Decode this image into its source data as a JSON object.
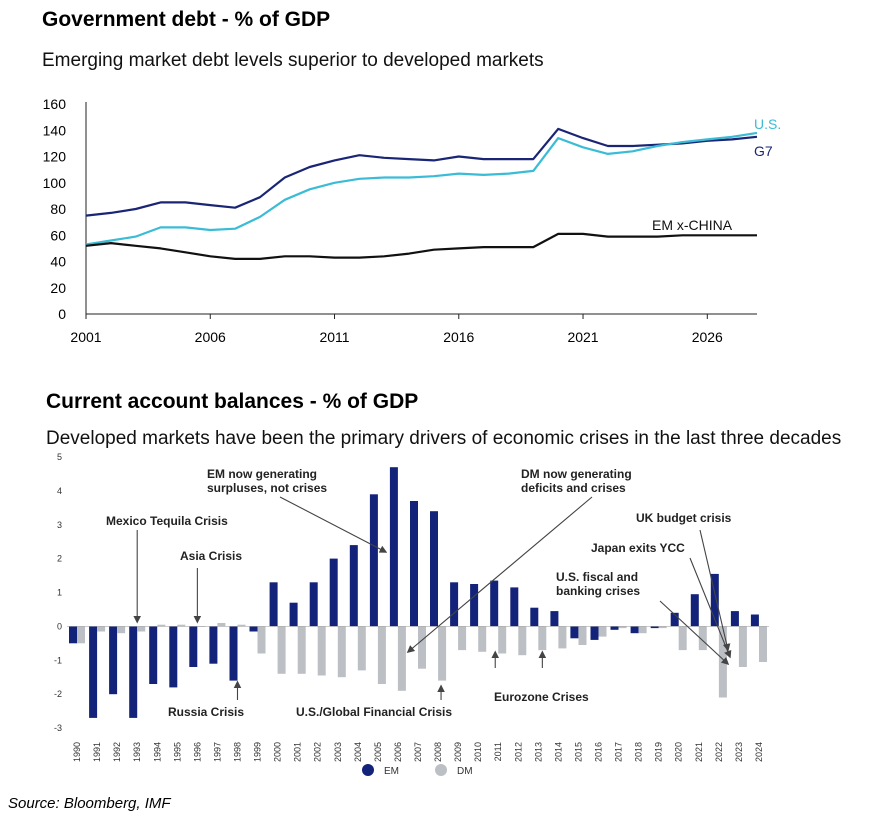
{
  "chart1": {
    "title": "Government debt - % of GDP",
    "subtitle": "Emerging market debt levels superior to developed markets"
  },
  "chart2": {
    "title": "Current account balances - % of GDP",
    "subtitle": "Developed markets have been the primary drivers of economic crises in the last three decades"
  },
  "source": "Source: Bloomberg, IMF",
  "colors": {
    "g7": "#1a2575",
    "us": "#3bbcd6",
    "em_line": "#111111",
    "em_bar": "#13237a",
    "dm_bar": "#bcbfc4"
  },
  "chart_data": [
    {
      "type": "line",
      "title": "Government debt - % of GDP",
      "ylim": [
        0,
        160
      ],
      "yticks": [
        0,
        20,
        40,
        60,
        80,
        100,
        120,
        140,
        160
      ],
      "xlim": [
        2001,
        2028
      ],
      "xticks": [
        2001,
        2006,
        2011,
        2016,
        2021,
        2026
      ],
      "grid": false,
      "x": [
        2001,
        2002,
        2003,
        2004,
        2005,
        2006,
        2007,
        2008,
        2009,
        2010,
        2011,
        2012,
        2013,
        2014,
        2015,
        2016,
        2017,
        2018,
        2019,
        2020,
        2021,
        2022,
        2023,
        2024,
        2025,
        2026,
        2027,
        2028
      ],
      "series": [
        {
          "name": "G7",
          "color_key": "g7",
          "values": [
            75,
            77,
            80,
            85,
            85,
            83,
            81,
            89,
            104,
            112,
            117,
            121,
            119,
            118,
            117,
            120,
            118,
            118,
            118,
            141,
            134,
            128,
            128,
            129,
            130,
            132,
            133,
            135
          ]
        },
        {
          "name": "U.S.",
          "color_key": "us",
          "values": [
            53,
            56,
            59,
            66,
            66,
            64,
            65,
            74,
            87,
            95,
            100,
            103,
            104,
            104,
            105,
            107,
            106,
            107,
            109,
            134,
            127,
            122,
            124,
            128,
            131,
            133,
            135,
            138
          ]
        },
        {
          "name": "EM x-CHINA",
          "color_key": "em_line",
          "values": [
            52,
            54,
            52,
            50,
            47,
            44,
            42,
            42,
            44,
            44,
            43,
            43,
            44,
            46,
            49,
            50,
            51,
            51,
            51,
            61,
            61,
            59,
            59,
            59,
            60,
            60,
            60,
            60
          ]
        }
      ]
    },
    {
      "type": "bar",
      "title": "Current account balances - % of GDP",
      "ylim": [
        -3,
        5
      ],
      "yticks": [
        -3,
        -2,
        -1,
        0,
        1,
        2,
        3,
        4,
        5
      ],
      "categories": [
        "1990",
        "1991",
        "1992",
        "1993",
        "1994",
        "1995",
        "1996",
        "1997",
        "1998",
        "1999",
        "2000",
        "2001",
        "2002",
        "2003",
        "2004",
        "2005",
        "2006",
        "2007",
        "2008",
        "2009",
        "2010",
        "2011",
        "2012",
        "2013",
        "2014",
        "2015",
        "2016",
        "2017",
        "2018",
        "2019",
        "2020",
        "2021",
        "2022",
        "2023",
        "2024"
      ],
      "series": [
        {
          "name": "EM",
          "color_key": "em_bar",
          "values": [
            -0.5,
            -2.7,
            -2.0,
            -2.7,
            -1.7,
            -1.8,
            -1.2,
            -1.1,
            -1.6,
            -0.15,
            1.3,
            0.7,
            1.3,
            2.0,
            2.4,
            3.9,
            4.7,
            3.7,
            3.4,
            1.3,
            1.25,
            1.35,
            1.15,
            0.55,
            0.45,
            -0.35,
            -0.4,
            -0.1,
            -0.2,
            -0.05,
            0.4,
            0.95,
            1.55,
            0.45,
            0.35
          ]
        },
        {
          "name": "DM",
          "color_key": "dm_bar",
          "values": [
            -0.5,
            -0.15,
            -0.2,
            -0.15,
            0.05,
            0.05,
            0.0,
            0.1,
            0.05,
            -0.8,
            -1.4,
            -1.4,
            -1.45,
            -1.5,
            -1.3,
            -1.7,
            -1.9,
            -1.25,
            -1.6,
            -0.7,
            -0.75,
            -0.8,
            -0.85,
            -0.7,
            -0.65,
            -0.55,
            -0.3,
            -0.05,
            -0.2,
            -0.05,
            -0.7,
            -0.7,
            -2.1,
            -1.2,
            -1.05
          ]
        }
      ],
      "annotations": [
        {
          "label": "Mexico Tequila Crisis",
          "year": "1993"
        },
        {
          "label": "Asia Crisis",
          "year": "1996"
        },
        {
          "label": "Russia Crisis",
          "year": "1998"
        },
        {
          "label": "EM now generating surpluses, not crises",
          "year": "2005"
        },
        {
          "label": "DM now generating deficits and crises",
          "year": "2006"
        },
        {
          "label": "U.S./Global Financial Crisis",
          "year": "2008"
        },
        {
          "label": "Eurozone Crises",
          "year": "2011-2013"
        },
        {
          "label": "UK budget crisis",
          "year": "2022"
        },
        {
          "label": "Japan exits YCC",
          "year": "2023"
        },
        {
          "label": "U.S. fiscal and banking crises",
          "year": "2023"
        }
      ],
      "legend_position": "bottom-center"
    }
  ]
}
